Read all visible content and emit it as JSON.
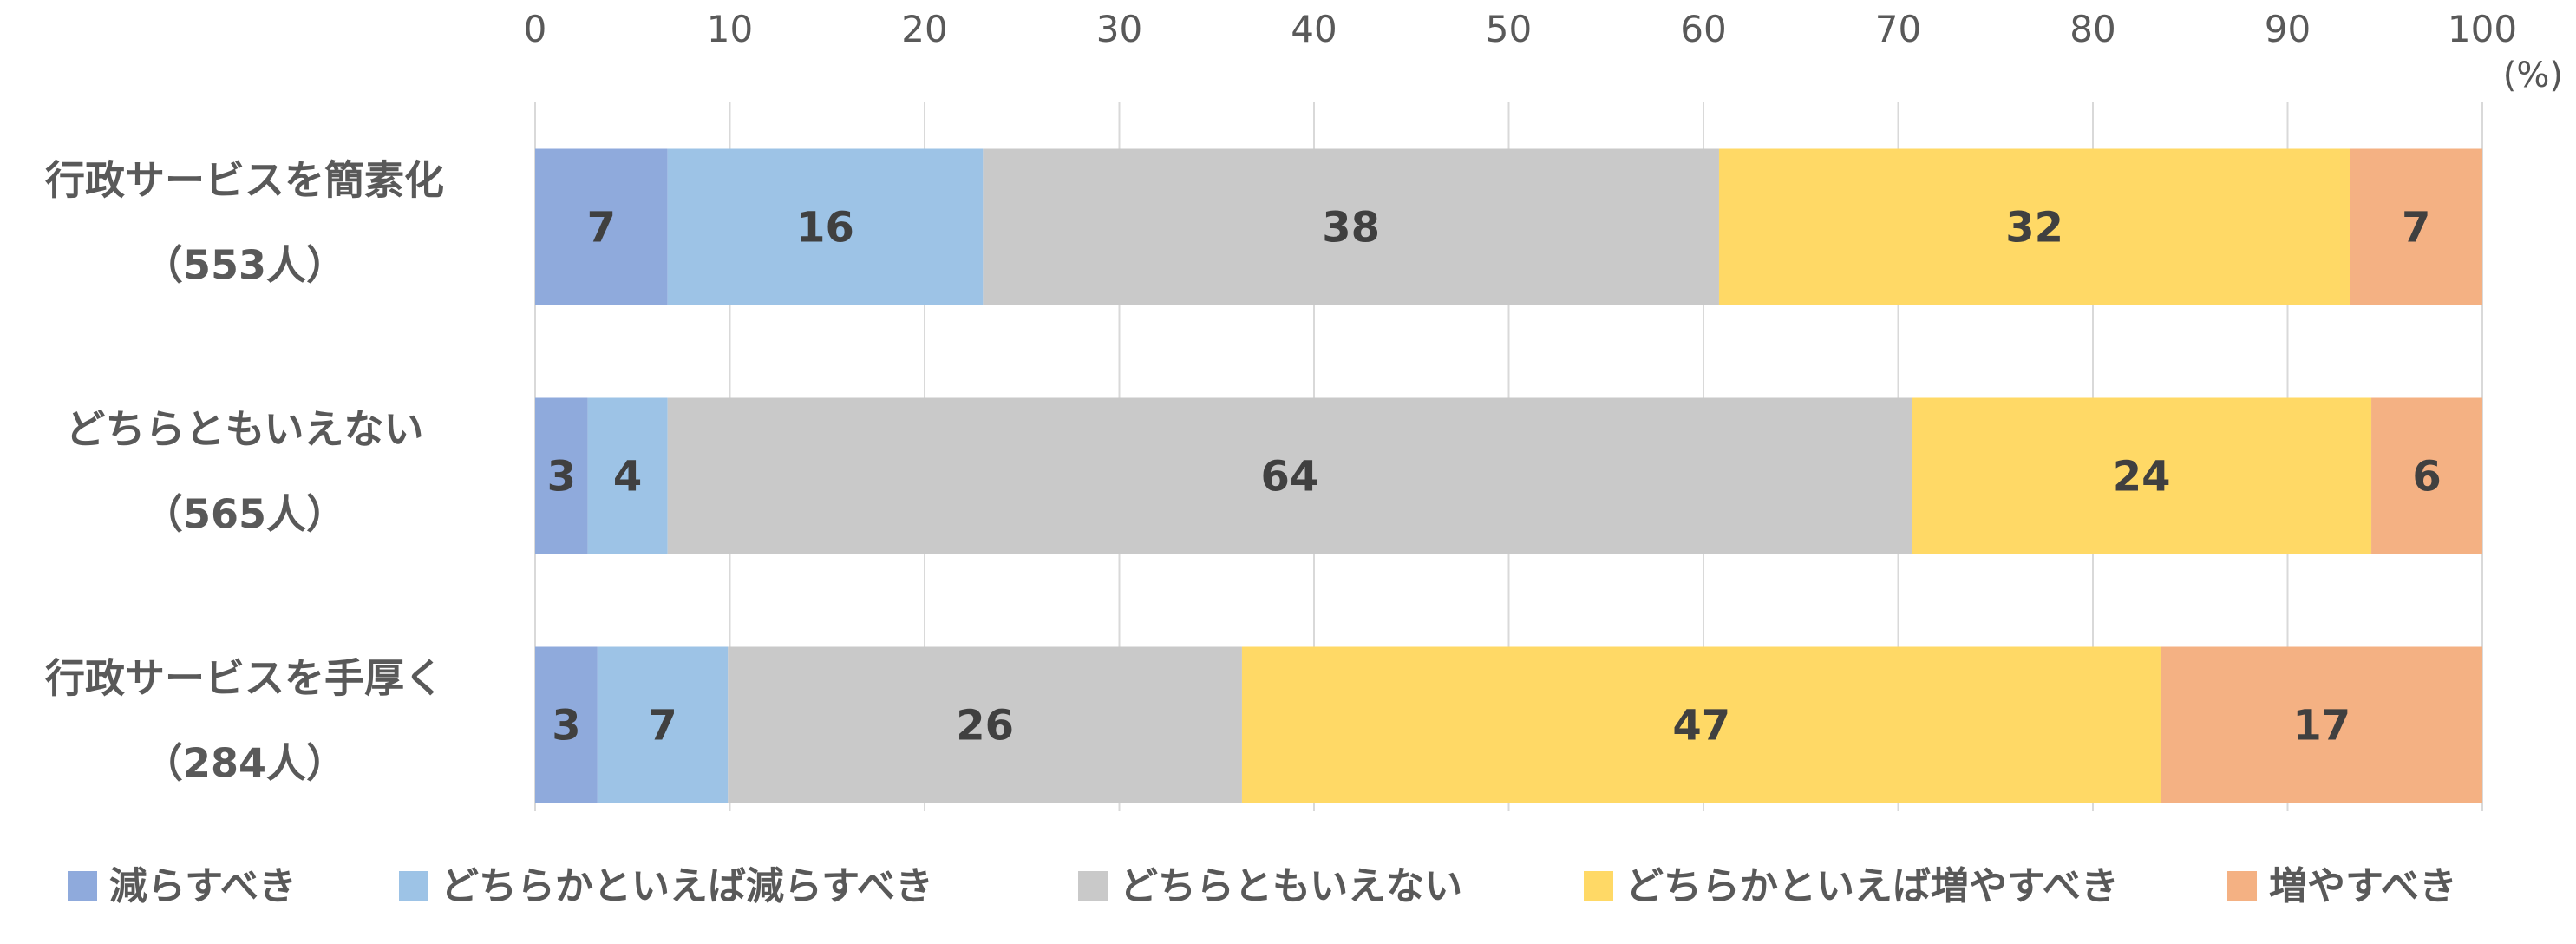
{
  "chart_data": {
    "type": "bar",
    "orientation": "horizontal",
    "stacked": true,
    "unit_label": "(%)",
    "xlim": [
      0,
      100
    ],
    "xticks": [
      "0",
      "10",
      "20",
      "30",
      "40",
      "50",
      "60",
      "70",
      "80",
      "90",
      "100"
    ],
    "grid": true,
    "legend_position": "bottom",
    "categories": [
      {
        "line1": "行政サービスを簡素化",
        "line2": "（553人）"
      },
      {
        "line1": "どちらともいえない",
        "line2": "（565人）"
      },
      {
        "line1": "行政サービスを手厚く",
        "line2": "（284人）"
      }
    ],
    "series": [
      {
        "name": "減らすべき",
        "color": "#8FAADC",
        "values": [
          6.8,
          2.7,
          3.2
        ]
      },
      {
        "name": "どちらかといえば減らすべき",
        "color": "#9DC3E6",
        "values": [
          16.2,
          4.1,
          6.7
        ]
      },
      {
        "name": "どちらともいえない",
        "color": "#C9C9C9",
        "values": [
          37.8,
          63.9,
          26.4
        ]
      },
      {
        "name": "どちらかといえば増やすべき",
        "color": "#FFD966",
        "values": [
          32.4,
          23.6,
          47.2
        ]
      },
      {
        "name": "増やすべき",
        "color": "#F4B183",
        "values": [
          6.8,
          5.7,
          16.5
        ]
      }
    ],
    "data_labels": [
      [
        "7",
        "16",
        "38",
        "32",
        "7"
      ],
      [
        "3",
        "4",
        "64",
        "24",
        "6"
      ],
      [
        "3",
        "7",
        "26",
        "47",
        "17"
      ]
    ]
  }
}
